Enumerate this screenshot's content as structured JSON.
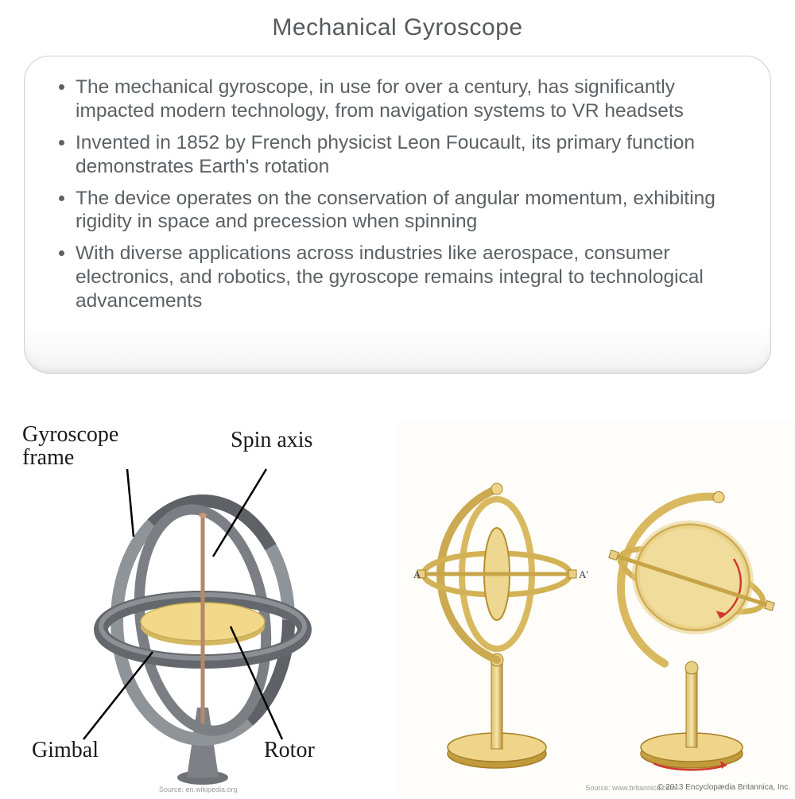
{
  "title": "Mechanical Gyroscope",
  "bullets": [
    "The mechanical gyroscope, in use for over a century, has significantly impacted modern technology, from navigation systems to VR headsets",
    "Invented in 1852 by French physicist Leon Foucault, its primary function demonstrates Earth's rotation",
    "The device operates on the conservation of angular momentum, exhibiting rigidity in space and precession when spinning",
    "With diverse applications across industries like aerospace, consumer electronics, and robotics, the gyroscope remains integral to technological advancements"
  ],
  "left_diagram": {
    "labels": {
      "frame": "Gyroscope frame",
      "spin_axis": "Spin axis",
      "gimbal": "Gimbal",
      "rotor": "Rotor"
    },
    "colors": {
      "frame_ring": "#6c7074",
      "frame_highlight": "#8f9499",
      "rotor_fill": "#f2d98a",
      "rotor_edge": "#d4b860",
      "axis": "#b5886a",
      "stand": "#7d8084",
      "callout_line": "#000000"
    },
    "source": "Source: en.wikipedia.org"
  },
  "right_diagram": {
    "colors": {
      "gold_light": "#f4e0a3",
      "gold_mid": "#e3c270",
      "gold_dark": "#c19a3a",
      "gold_stroke": "#a77f28",
      "arrow": "#d03a2a",
      "background": "#fefdf9"
    },
    "axis_labels": {
      "a": "A",
      "a_prime": "A'"
    },
    "source": "Source: www.britannica.com",
    "copyright": "© 2013 Encyclopædia Britannica, Inc."
  },
  "styling": {
    "title_color": "#555a5e",
    "title_fontsize": 30,
    "bullet_color": "#5b6165",
    "bullet_fontsize": 24.5,
    "card_border_radius": 32,
    "card_border_color": "#d0d0d0",
    "callout_fontsize": 28,
    "background": "#ffffff"
  }
}
